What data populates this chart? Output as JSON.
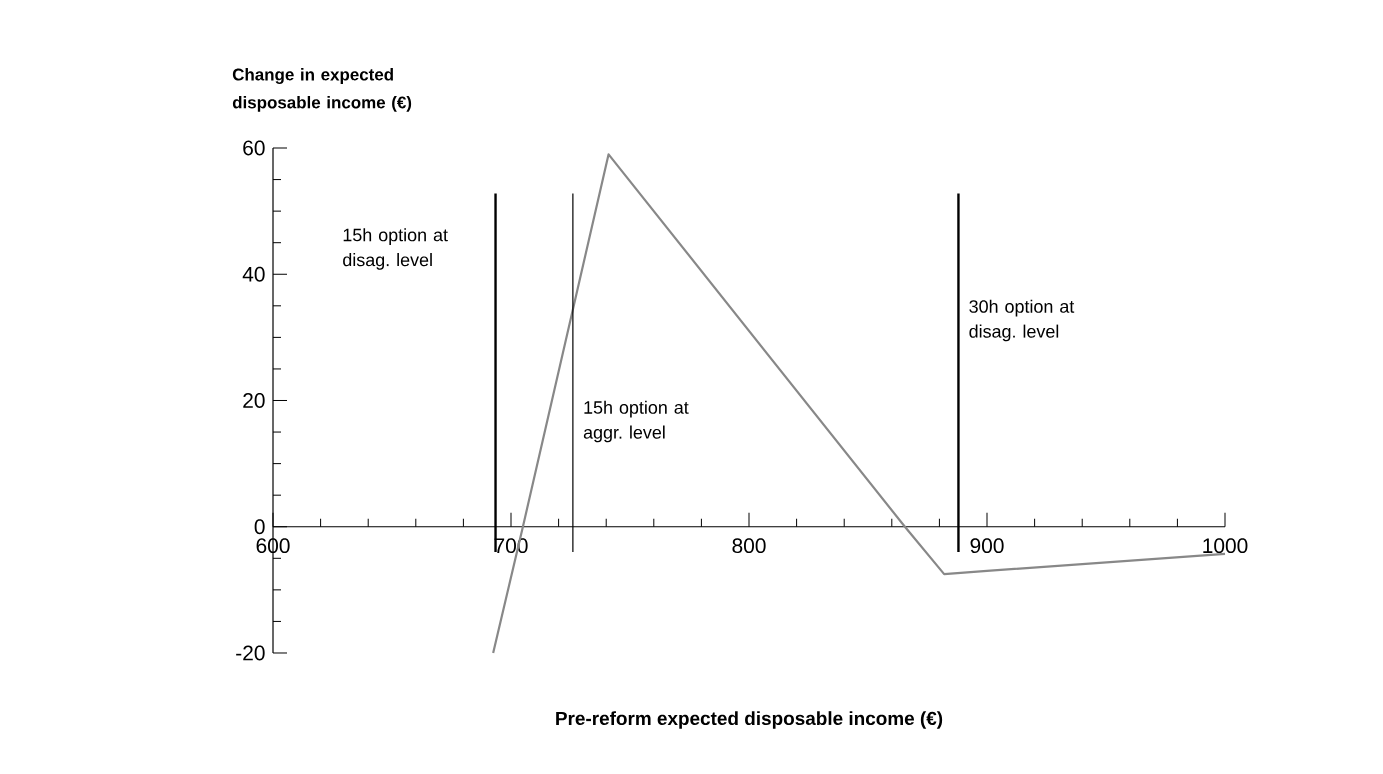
{
  "chart_data": {
    "type": "line",
    "xlabel": "Pre-reform expected disposable income (€)",
    "ylabel": "Change in expected disposable income (€)",
    "x": [
      692.5,
      705,
      741,
      865.5,
      882,
      900,
      1000
    ],
    "series": [
      {
        "color": "#888888",
        "values": [
          -20,
          0,
          59,
          0,
          -7.5,
          -7,
          -4.3
        ]
      }
    ],
    "xlim": [
      600,
      1000
    ],
    "ylim": [
      -20,
      60
    ],
    "xticks": [
      600,
      700,
      800,
      900,
      1000
    ],
    "yticks": [
      -20,
      0,
      20,
      40,
      60
    ],
    "ref_lines": [
      {
        "axis": "x",
        "value": 693.5,
        "label": "15h option at disag. level",
        "color": "#000000"
      },
      {
        "axis": "x",
        "value": 726,
        "label": "15h option at aggr. level",
        "color": "#000000"
      },
      {
        "axis": "x",
        "value": 888,
        "label": "30h option at disag. level",
        "color": "#000000"
      }
    ],
    "grid": false,
    "marker": "none",
    "line_style": "solid"
  }
}
